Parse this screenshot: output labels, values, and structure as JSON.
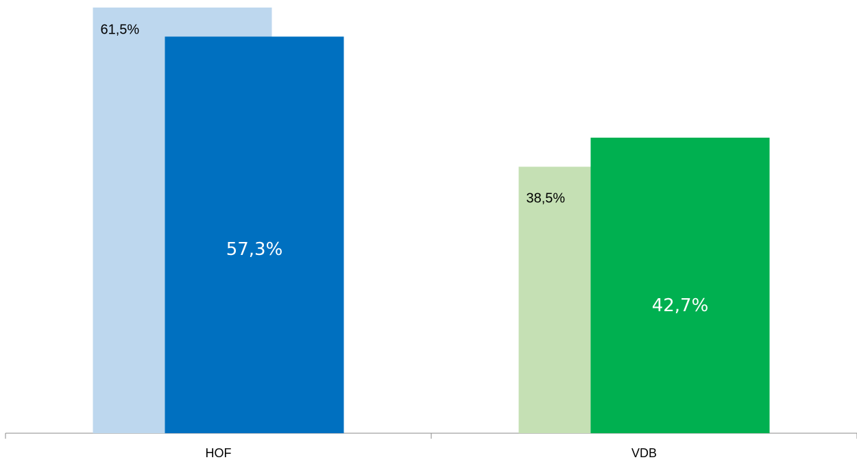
{
  "chart_data": {
    "type": "bar",
    "categories": [
      "HOF",
      "VDB"
    ],
    "series": [
      {
        "colors": [
          "#bdd7ee",
          "#c5e0b4"
        ],
        "values": [
          61.5,
          38.5
        ],
        "value_labels": [
          "61,5%",
          "38,5%"
        ]
      },
      {
        "colors": [
          "#0070c0",
          "#00b050"
        ],
        "values": [
          57.3,
          42.7
        ],
        "value_labels": [
          "57,3%",
          "42,7%"
        ]
      }
    ],
    "ylim": [
      0,
      61.5
    ]
  }
}
